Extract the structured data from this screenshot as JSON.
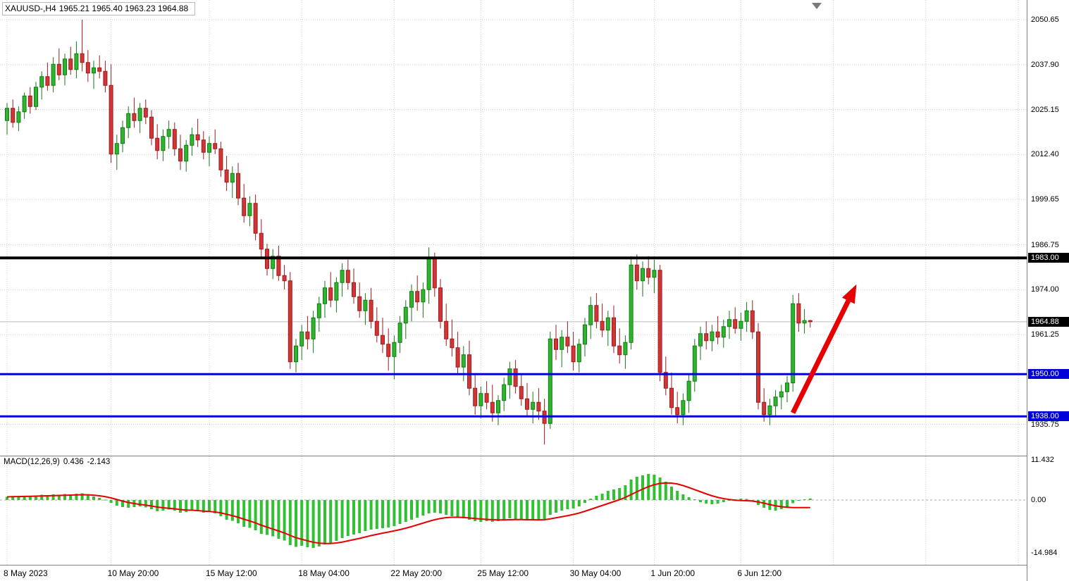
{
  "colors": {
    "bull": "#2db52d",
    "bull_stroke": "#157a15",
    "bear": "#d23535",
    "bear_stroke": "#9c1d1d",
    "hline_black": "#000000",
    "hline_blue": "#0000d8",
    "macd_histogram": "#2fc12f",
    "signal_line": "#e60000",
    "arrow": "#e60000",
    "grid": "#cdcdcd",
    "background": "#ffffff",
    "last_price_line": "#bcbcbc"
  },
  "header": {
    "symbol_period": "XAUUSD-,H4",
    "ohlc_text": "1965.21 1965.40 1963.23 1964.88"
  },
  "chart_data": [
    {
      "type": "candlestick",
      "symbol": "XAUUSD",
      "timeframe": "H4",
      "ohlc_display": {
        "open": 1965.21,
        "high": 1965.4,
        "low": 1963.23,
        "close": 1964.88
      },
      "y_axis_ticks": [
        "2050.65",
        "2037.90",
        "2025.15",
        "2012.40",
        "1999.65",
        "1986.75",
        "1974.00",
        "1961.25",
        "1935.75"
      ],
      "x_axis_ticks": [
        {
          "i": 0,
          "label": "8 May 2023"
        },
        {
          "i": 18,
          "label": "10 May 20:00"
        },
        {
          "i": 35,
          "label": "15 May 12:00"
        },
        {
          "i": 51,
          "label": "18 May 04:00"
        },
        {
          "i": 67,
          "label": "22 May 20:00"
        },
        {
          "i": 82,
          "label": "25 May 12:00"
        },
        {
          "i": 98,
          "label": "30 May 04:00"
        },
        {
          "i": 112,
          "label": "1 Jun 20:00"
        },
        {
          "i": 127,
          "label": "6 Jun 12:00"
        }
      ],
      "x_grid_extra": [
        143,
        159,
        175
      ],
      "hlines": [
        {
          "price": 1983.0,
          "label": "1983.00",
          "color": "#000000",
          "width": 4
        },
        {
          "price": 1950.0,
          "label": "1950.00",
          "color": "#0000d8",
          "width": 3
        },
        {
          "price": 1938.0,
          "label": "1938.00",
          "color": "#0000d8",
          "width": 3
        }
      ],
      "current_price": 1964.88,
      "current_price_label": "1964.88",
      "arrow": {
        "from_i": 136,
        "from_price": 1939.0,
        "to_i": 147,
        "to_price": 1975.5
      },
      "candles": [
        [
          2022,
          2027,
          2018,
          2025.5
        ],
        [
          2025.5,
          2028,
          2020,
          2021.5
        ],
        [
          2021.5,
          2026,
          2019,
          2024.5
        ],
        [
          2024.5,
          2030,
          2022.5,
          2029
        ],
        [
          2029,
          2031.5,
          2024,
          2026
        ],
        [
          2026,
          2033,
          2025,
          2031.5
        ],
        [
          2031.5,
          2036,
          2028,
          2034.5
        ],
        [
          2034.5,
          2038.5,
          2030.5,
          2032
        ],
        [
          2032,
          2040,
          2030,
          2038
        ],
        [
          2038,
          2042.5,
          2033.5,
          2035
        ],
        [
          2035,
          2041,
          2032,
          2039.5
        ],
        [
          2039.5,
          2043,
          2035,
          2036.5
        ],
        [
          2036.5,
          2044.5,
          2034,
          2041
        ],
        [
          2041,
          2050.65,
          2036,
          2038.5
        ],
        [
          2038.5,
          2042,
          2033,
          2035.5
        ],
        [
          2035.5,
          2039,
          2031,
          2037
        ],
        [
          2037,
          2040.5,
          2034,
          2036
        ],
        [
          2036,
          2039,
          2030,
          2032
        ],
        [
          2032,
          2038,
          2010,
          2012.5
        ],
        [
          2012.5,
          2018,
          2008,
          2015.5
        ],
        [
          2015.5,
          2022,
          2013,
          2020
        ],
        [
          2020,
          2026,
          2017,
          2024
        ],
        [
          2024,
          2028.5,
          2020,
          2022
        ],
        [
          2022,
          2027,
          2018.5,
          2025.5
        ],
        [
          2025.5,
          2028,
          2021,
          2023
        ],
        [
          2023,
          2025,
          2015,
          2017
        ],
        [
          2017,
          2021,
          2011,
          2013.5
        ],
        [
          2013.5,
          2019.5,
          2010.5,
          2017.5
        ],
        [
          2017.5,
          2022,
          2014,
          2019.5
        ],
        [
          2019.5,
          2021.5,
          2012,
          2014
        ],
        [
          2014,
          2018,
          2008,
          2010.5
        ],
        [
          2010.5,
          2016.5,
          2007.5,
          2015
        ],
        [
          2015,
          2020,
          2012,
          2018
        ],
        [
          2018,
          2022.5,
          2014.5,
          2016.5
        ],
        [
          2016.5,
          2019,
          2011,
          2013
        ],
        [
          2013,
          2017.5,
          2009,
          2015.5
        ],
        [
          2015.5,
          2019.5,
          2012.5,
          2014
        ],
        [
          2014,
          2016,
          2006,
          2008
        ],
        [
          2008,
          2012,
          2002,
          2004.5
        ],
        [
          2004.5,
          2009,
          2000,
          2007
        ],
        [
          2007,
          2010,
          1998,
          2000
        ],
        [
          2000,
          2004,
          1993,
          1995
        ],
        [
          1995,
          2000.5,
          1992,
          1998.5
        ],
        [
          1998.5,
          2001,
          1988,
          1990
        ],
        [
          1990,
          1994,
          1983,
          1985.5
        ],
        [
          1985.5,
          1987,
          1978,
          1980
        ],
        [
          1980,
          1985.5,
          1977,
          1983.5
        ],
        [
          1983.5,
          1986.5,
          1976.5,
          1978
        ],
        [
          1978,
          1981,
          1974,
          1976.5
        ],
        [
          1976.5,
          1979,
          1951.5,
          1953.5
        ],
        [
          1953.5,
          1960,
          1950.5,
          1958
        ],
        [
          1958,
          1964,
          1954,
          1962
        ],
        [
          1962,
          1966.5,
          1957,
          1960
        ],
        [
          1960,
          1968,
          1956,
          1966
        ],
        [
          1966,
          1972,
          1962,
          1970
        ],
        [
          1970,
          1976.5,
          1966,
          1974.5
        ],
        [
          1974.5,
          1979,
          1969,
          1971
        ],
        [
          1971,
          1977.5,
          1967.5,
          1976
        ],
        [
          1976,
          1981.5,
          1972,
          1979.5
        ],
        [
          1979.5,
          1982.5,
          1974,
          1976
        ],
        [
          1976,
          1980,
          1970,
          1972
        ],
        [
          1972,
          1976,
          1966,
          1968
        ],
        [
          1968,
          1973,
          1964,
          1971
        ],
        [
          1971,
          1974.5,
          1963,
          1965
        ],
        [
          1965,
          1969,
          1959,
          1961
        ],
        [
          1961,
          1966,
          1956,
          1958.5
        ],
        [
          1958.5,
          1963,
          1951,
          1955
        ],
        [
          1955,
          1961,
          1948.5,
          1959
        ],
        [
          1959,
          1966.5,
          1956,
          1964.5
        ],
        [
          1964.5,
          1971,
          1960,
          1969
        ],
        [
          1969,
          1975.5,
          1965,
          1973.5
        ],
        [
          1973.5,
          1978,
          1968,
          1970.5
        ],
        [
          1970.5,
          1976,
          1966,
          1974
        ],
        [
          1974,
          1986,
          1970,
          1983
        ],
        [
          1983,
          1984.5,
          1972,
          1974.5
        ],
        [
          1974.5,
          1977,
          1963,
          1965
        ],
        [
          1965,
          1970,
          1958,
          1960
        ],
        [
          1960,
          1965.5,
          1955,
          1957.5
        ],
        [
          1957.5,
          1962,
          1950,
          1952
        ],
        [
          1952,
          1958,
          1948,
          1955.5
        ],
        [
          1955.5,
          1959.5,
          1944,
          1946
        ],
        [
          1946,
          1950,
          1938.5,
          1941
        ],
        [
          1941,
          1946.5,
          1937.5,
          1944.5
        ],
        [
          1944.5,
          1948,
          1940,
          1942
        ],
        [
          1942,
          1947,
          1936.5,
          1939
        ],
        [
          1939,
          1944,
          1935.5,
          1942.5
        ],
        [
          1942.5,
          1949,
          1939.5,
          1947
        ],
        [
          1947,
          1953.5,
          1943,
          1951.5
        ],
        [
          1951.5,
          1954,
          1944.5,
          1946.5
        ],
        [
          1946.5,
          1950,
          1941,
          1943
        ],
        [
          1943,
          1947.5,
          1938,
          1940
        ],
        [
          1940,
          1945,
          1936,
          1942
        ],
        [
          1942,
          1946,
          1937,
          1939.5
        ],
        [
          1939.5,
          1943,
          1930,
          1936
        ],
        [
          1936,
          1962,
          1934.5,
          1960
        ],
        [
          1960,
          1964,
          1954,
          1957
        ],
        [
          1957,
          1962.5,
          1952,
          1960.5
        ],
        [
          1960.5,
          1965,
          1956,
          1958
        ],
        [
          1958,
          1962,
          1951,
          1953.5
        ],
        [
          1953.5,
          1960,
          1950.5,
          1958.5
        ],
        [
          1958.5,
          1966,
          1955,
          1964
        ],
        [
          1964,
          1972,
          1960,
          1969.5
        ],
        [
          1969.5,
          1973,
          1963,
          1965
        ],
        [
          1965,
          1970,
          1960.5,
          1962.5
        ],
        [
          1962.5,
          1968,
          1958,
          1966
        ],
        [
          1966,
          1969.5,
          1956,
          1958
        ],
        [
          1958,
          1963,
          1953,
          1955.5
        ],
        [
          1955.5,
          1961,
          1951.5,
          1959
        ],
        [
          1959,
          1983.5,
          1957,
          1981
        ],
        [
          1981,
          1984,
          1974,
          1976.5
        ],
        [
          1976.5,
          1982,
          1972,
          1980
        ],
        [
          1980,
          1983.5,
          1975.5,
          1977.5
        ],
        [
          1977.5,
          1982.5,
          1973,
          1979.5
        ],
        [
          1979.5,
          1981,
          1948,
          1950.5
        ],
        [
          1950.5,
          1955,
          1944,
          1946
        ],
        [
          1946,
          1950.5,
          1938.5,
          1940.5
        ],
        [
          1940.5,
          1945,
          1936,
          1938.5
        ],
        [
          1938.5,
          1944.5,
          1935.5,
          1942.5
        ],
        [
          1942.5,
          1950,
          1939,
          1948
        ],
        [
          1948,
          1960,
          1945,
          1958
        ],
        [
          1958,
          1963.5,
          1954,
          1961.5
        ],
        [
          1961.5,
          1965,
          1957,
          1959.5
        ],
        [
          1959.5,
          1964,
          1956.5,
          1962
        ],
        [
          1962,
          1966.5,
          1958.5,
          1960.5
        ],
        [
          1960.5,
          1965.5,
          1957.5,
          1963.5
        ],
        [
          1963.5,
          1968,
          1960,
          1965.5
        ],
        [
          1965.5,
          1969,
          1961.5,
          1963
        ],
        [
          1963,
          1967.5,
          1959.5,
          1965
        ],
        [
          1965,
          1970.5,
          1962,
          1968
        ],
        [
          1968,
          1971,
          1960,
          1962
        ],
        [
          1962,
          1964.5,
          1940,
          1942
        ],
        [
          1942,
          1946,
          1936.5,
          1938.5
        ],
        [
          1938.5,
          1943,
          1935.5,
          1941
        ],
        [
          1941,
          1945.5,
          1938,
          1943.5
        ],
        [
          1943.5,
          1947,
          1940,
          1945
        ],
        [
          1945,
          1949.5,
          1942,
          1947.5
        ],
        [
          1947.5,
          1972.5,
          1945,
          1970
        ],
        [
          1970,
          1973,
          1962,
          1964.5
        ],
        [
          1964.5,
          1968.5,
          1961.5,
          1965.21
        ],
        [
          1965.21,
          1965.4,
          1963.23,
          1964.88
        ]
      ]
    },
    {
      "type": "macd",
      "label": "MACD(12,26,9)",
      "value_macd": "0.436",
      "value_signal": "-2.143",
      "y_axis_ticks": [
        "11.432",
        "0.00",
        "-14.984"
      ],
      "histogram": [
        0.9,
        1.1,
        1.0,
        1.2,
        1.1,
        1.3,
        1.5,
        1.4,
        1.6,
        1.5,
        1.7,
        1.6,
        1.8,
        1.9,
        1.5,
        1.0,
        0.6,
        0.1,
        -0.8,
        -1.6,
        -2.0,
        -2.2,
        -2.0,
        -1.8,
        -2.1,
        -2.6,
        -3.2,
        -3.0,
        -2.7,
        -3.0,
        -3.6,
        -3.4,
        -3.0,
        -3.2,
        -3.6,
        -3.4,
        -3.8,
        -4.6,
        -5.6,
        -5.9,
        -6.6,
        -7.6,
        -7.9,
        -8.6,
        -9.6,
        -9.9,
        -10.3,
        -11.0,
        -11.5,
        -12.8,
        -13.3,
        -13.0,
        -13.4,
        -13.6,
        -13.2,
        -12.6,
        -12.2,
        -11.6,
        -10.8,
        -10.2,
        -9.8,
        -9.4,
        -8.8,
        -8.4,
        -8.2,
        -8.0,
        -7.8,
        -7.4,
        -6.8,
        -6.2,
        -5.6,
        -5.0,
        -4.4,
        -3.8,
        -3.6,
        -3.8,
        -4.2,
        -4.6,
        -5.0,
        -5.2,
        -5.6,
        -6.0,
        -6.2,
        -6.0,
        -6.2,
        -6.0,
        -5.6,
        -5.2,
        -5.4,
        -5.6,
        -5.8,
        -5.6,
        -5.8,
        -5.4,
        -4.2,
        -3.6,
        -3.0,
        -2.6,
        -2.4,
        -1.8,
        -0.8,
        0.4,
        1.2,
        1.8,
        2.6,
        3.0,
        3.4,
        4.2,
        5.8,
        6.6,
        7.0,
        7.4,
        7.2,
        6.4,
        5.2,
        3.8,
        2.6,
        1.6,
        0.8,
        0.2,
        -0.6,
        -1.0,
        -1.2,
        -1.0,
        -0.6,
        -0.2,
        0.2,
        0.4,
        0.3,
        -0.4,
        -1.4,
        -2.2,
        -2.8,
        -3.0,
        -2.6,
        -2.0,
        -0.9,
        -0.2,
        0.2,
        0.436
      ],
      "signal": [
        0.9,
        0.95,
        0.98,
        1.02,
        1.05,
        1.1,
        1.15,
        1.2,
        1.26,
        1.3,
        1.36,
        1.4,
        1.45,
        1.5,
        1.48,
        1.38,
        1.2,
        0.95,
        0.6,
        0.15,
        -0.3,
        -0.7,
        -1.0,
        -1.25,
        -1.45,
        -1.7,
        -2.0,
        -2.2,
        -2.35,
        -2.5,
        -2.7,
        -2.85,
        -2.9,
        -3.0,
        -3.15,
        -3.25,
        -3.4,
        -3.65,
        -4.05,
        -4.45,
        -4.9,
        -5.45,
        -5.95,
        -6.5,
        -7.15,
        -7.7,
        -8.25,
        -8.8,
        -9.35,
        -10.05,
        -10.7,
        -11.15,
        -11.6,
        -12.0,
        -12.25,
        -12.35,
        -12.35,
        -12.2,
        -11.95,
        -11.6,
        -11.25,
        -10.9,
        -10.5,
        -10.1,
        -9.75,
        -9.4,
        -9.1,
        -8.75,
        -8.4,
        -8.0,
        -7.55,
        -7.05,
        -6.55,
        -6.05,
        -5.6,
        -5.25,
        -5.0,
        -4.9,
        -4.9,
        -4.95,
        -5.1,
        -5.25,
        -5.4,
        -5.5,
        -5.6,
        -5.65,
        -5.65,
        -5.6,
        -5.55,
        -5.55,
        -5.6,
        -5.6,
        -5.65,
        -5.6,
        -5.35,
        -5.05,
        -4.75,
        -4.45,
        -4.1,
        -3.7,
        -3.2,
        -2.65,
        -2.1,
        -1.55,
        -1.0,
        -0.45,
        0.1,
        0.75,
        1.55,
        2.35,
        3.1,
        3.8,
        4.35,
        4.7,
        4.85,
        4.8,
        4.55,
        4.1,
        3.55,
        2.95,
        2.35,
        1.75,
        1.2,
        0.75,
        0.4,
        0.15,
        -0.05,
        -0.15,
        -0.2,
        -0.3,
        -0.55,
        -0.9,
        -1.3,
        -1.65,
        -1.9,
        -2.05,
        -2.15,
        -2.15,
        -2.15,
        -2.143
      ]
    }
  ]
}
